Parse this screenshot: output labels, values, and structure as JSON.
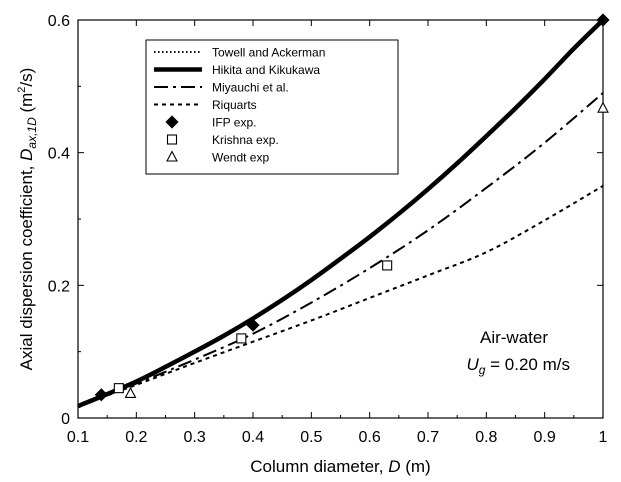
{
  "chart_data": {
    "type": "line",
    "xlabel": {
      "text": "Column diameter, ",
      "var": "D",
      "unit": " (m)"
    },
    "ylabel": {
      "text": "Axial dispersion coefficient, ",
      "var": "D",
      "sub": "ax,1D",
      "unit_pre": "  (m",
      "unit_sup": "2",
      "unit_post": "/s)"
    },
    "xlim": [
      0.1,
      1.0
    ],
    "ylim": [
      0,
      0.6
    ],
    "xticks": [
      "0.1",
      "0.2",
      "0.3",
      "0.4",
      "0.5",
      "0.6",
      "0.7",
      "0.8",
      "0.9",
      "1"
    ],
    "yticks": [
      "0",
      "0.2",
      "0.4",
      "0.6"
    ],
    "grid": false,
    "legend_position": "top-left",
    "annotation": {
      "line1": "Air-water",
      "line2_var": "U",
      "line2_sub": "g",
      "line2_rest": " = 0.20 m/s"
    },
    "series": [
      {
        "name": "Towell and Ackerman",
        "style": "dotted",
        "x": [
          0.1,
          0.15,
          0.2,
          0.25,
          0.3,
          0.35,
          0.4
        ],
        "y": [
          0.018,
          0.036,
          0.055,
          0.077,
          0.1,
          0.124,
          0.15
        ]
      },
      {
        "name": "Hikita and Kikukawa",
        "style": "thick",
        "x": [
          0.1,
          0.15,
          0.2,
          0.25,
          0.3,
          0.35,
          0.4,
          0.45,
          0.5,
          0.55,
          0.6,
          0.65,
          0.7,
          0.75,
          0.8,
          0.85,
          0.9,
          0.95,
          1.0
        ],
        "y": [
          0.018,
          0.036,
          0.055,
          0.077,
          0.1,
          0.124,
          0.15,
          0.178,
          0.208,
          0.24,
          0.273,
          0.308,
          0.345,
          0.384,
          0.425,
          0.467,
          0.511,
          0.557,
          0.6
        ]
      },
      {
        "name": "Miyauchi et al.",
        "style": "dashdot",
        "x": [
          0.1,
          0.2,
          0.3,
          0.4,
          0.5,
          0.6,
          0.7,
          0.8,
          0.9,
          1.0
        ],
        "y": [
          0.018,
          0.052,
          0.088,
          0.127,
          0.174,
          0.226,
          0.283,
          0.347,
          0.415,
          0.49
        ]
      },
      {
        "name": "Riquarts",
        "style": "dashed",
        "x": [
          0.1,
          0.2,
          0.3,
          0.4,
          0.5,
          0.6,
          0.7,
          0.8,
          0.9,
          1.0
        ],
        "y": [
          0.018,
          0.05,
          0.083,
          0.115,
          0.147,
          0.181,
          0.215,
          0.25,
          0.298,
          0.35
        ]
      }
    ],
    "points": [
      {
        "name": "IFP exp.",
        "marker": "diamond",
        "x": [
          0.14,
          0.4,
          1.0
        ],
        "y": [
          0.035,
          0.14,
          0.6
        ]
      },
      {
        "name": "Krishna exp.",
        "marker": "square",
        "x": [
          0.17,
          0.38,
          0.63
        ],
        "y": [
          0.045,
          0.12,
          0.23
        ]
      },
      {
        "name": "Wendt exp",
        "marker": "triangle",
        "x": [
          0.19,
          1.0
        ],
        "y": [
          0.037,
          0.467
        ]
      }
    ]
  }
}
